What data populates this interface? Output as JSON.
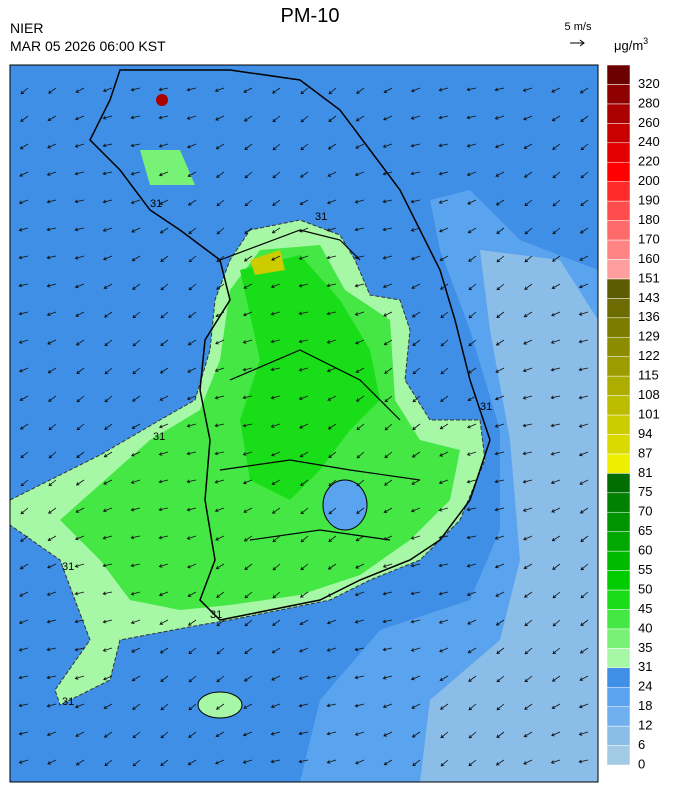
{
  "header": {
    "org": "NIER",
    "title": "PM-10",
    "datetime": "MAR 05 2026 06:00 KST"
  },
  "wind_scale": "5 m/s",
  "colorbar": {
    "unit": {
      "base": "μg/m",
      "superscript": "3"
    },
    "levels": [
      0,
      6,
      12,
      18,
      24,
      31,
      35,
      40,
      45,
      50,
      55,
      60,
      65,
      70,
      75,
      81,
      87,
      94,
      101,
      108,
      115,
      122,
      129,
      136,
      143,
      151,
      160,
      170,
      180,
      190,
      200,
      220,
      240,
      260,
      280,
      320
    ],
    "colors": [
      "#a3cbe6",
      "#8bbde9",
      "#70b0ef",
      "#5aa3ef",
      "#3f8fe6",
      "#a6f7a6",
      "#77f277",
      "#44e744",
      "#19dd19",
      "#00cc00",
      "#00ba00",
      "#00a800",
      "#009400",
      "#008200",
      "#006e00",
      "#eeee00",
      "#dada00",
      "#cccc00",
      "#bcbc00",
      "#adad00",
      "#9c9c00",
      "#8c8c00",
      "#7c7c00",
      "#6c6c00",
      "#5c5c00",
      "#ff9e9e",
      "#ff8484",
      "#ff6a6a",
      "#ff4c4c",
      "#ff2a2a",
      "#ff0000",
      "#e20000",
      "#c80000",
      "#aa0000",
      "#8e0000",
      "#6a0000"
    ]
  },
  "map": {
    "contour_labels": [
      "31",
      "31",
      "31",
      "31",
      "31",
      "31",
      "31"
    ]
  }
}
